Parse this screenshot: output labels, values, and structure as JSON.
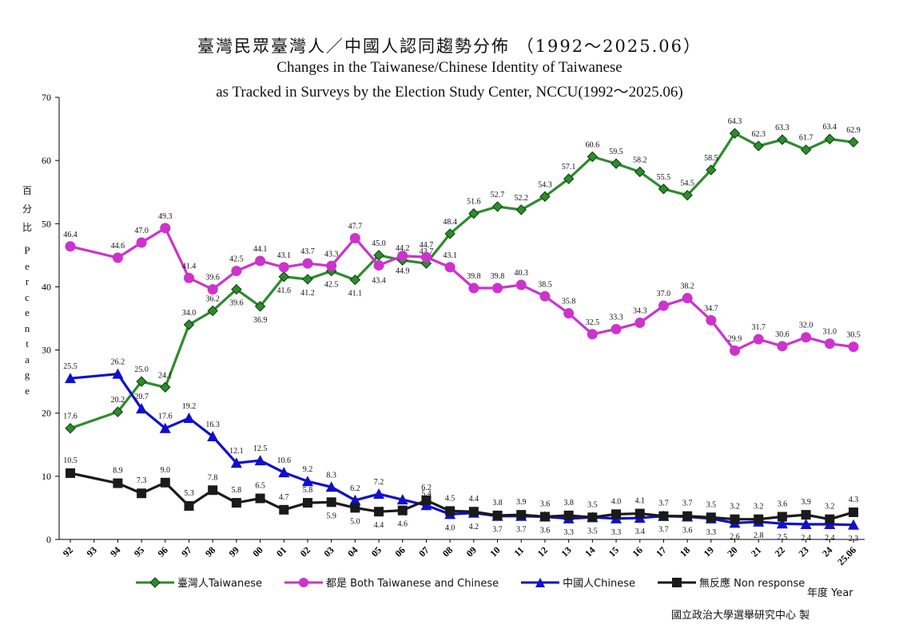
{
  "title_zh": "臺灣民眾臺灣人／中國人認同趨勢分佈 （1992～2025.06）",
  "title_en_line1": "Changes in the Taiwanese/Chinese Identity of Taiwanese",
  "title_en_line2": "as Tracked in Surveys by the Election Study Center, NCCU(1992～2025.06)",
  "ylabel_zh": [
    "百",
    "分",
    "比"
  ],
  "ylabel_en": [
    "P",
    "e",
    "r",
    "c",
    "e",
    "n",
    "t",
    "a",
    "g",
    "e"
  ],
  "xaxis_title": "年度 Year",
  "source": "國立政治大學選舉研究中心 製",
  "colors": {
    "taiwanese": "#2E8B2E",
    "both": "#CC33CC",
    "chinese": "#1010CC",
    "nonresponse": "#1A1A1A"
  },
  "chart_data": {
    "type": "line",
    "x": [
      "92",
      "93",
      "94",
      "95",
      "96",
      "97",
      "98",
      "99",
      "00",
      "01",
      "02",
      "03",
      "04",
      "05",
      "06",
      "07",
      "08",
      "09",
      "10",
      "11",
      "12",
      "13",
      "14",
      "15",
      "16",
      "17",
      "18",
      "19",
      "20",
      "21",
      "22",
      "23",
      "24",
      "25.06"
    ],
    "ylim": [
      0,
      70
    ],
    "yticks": [
      0,
      10,
      20,
      30,
      40,
      50,
      60,
      70
    ],
    "legend_position": "bottom",
    "series": [
      {
        "name": "臺灣人Taiwanese",
        "key": "taiwanese",
        "marker": "diamond",
        "values": [
          17.6,
          null,
          20.2,
          25.0,
          24.1,
          34.0,
          36.2,
          39.6,
          36.9,
          41.6,
          41.2,
          42.5,
          41.1,
          45.0,
          44.2,
          43.7,
          48.4,
          51.6,
          52.7,
          52.2,
          54.3,
          57.1,
          60.6,
          59.5,
          58.2,
          55.5,
          54.5,
          58.5,
          64.3,
          62.3,
          63.3,
          61.7,
          63.4,
          62.9
        ]
      },
      {
        "name": "都是 Both Taiwanese and Chinese",
        "key": "both",
        "marker": "circle",
        "values": [
          46.4,
          null,
          44.6,
          47.0,
          49.3,
          41.4,
          39.6,
          42.5,
          44.1,
          43.1,
          43.7,
          43.3,
          47.7,
          43.4,
          44.9,
          44.7,
          43.1,
          39.8,
          39.8,
          40.3,
          38.5,
          35.8,
          32.5,
          33.3,
          34.3,
          37.0,
          38.2,
          34.7,
          29.9,
          31.7,
          30.6,
          32.0,
          31.0,
          30.5
        ]
      },
      {
        "name": "中國人Chinese",
        "key": "chinese",
        "marker": "triangle",
        "values": [
          25.5,
          null,
          26.2,
          20.7,
          17.6,
          19.2,
          16.3,
          12.1,
          12.5,
          10.6,
          9.2,
          8.3,
          6.2,
          7.2,
          6.3,
          5.4,
          4.0,
          4.2,
          3.7,
          3.7,
          3.6,
          3.3,
          3.5,
          3.3,
          3.4,
          3.7,
          3.6,
          3.3,
          2.6,
          2.8,
          2.5,
          2.4,
          2.4,
          2.3
        ]
      },
      {
        "name": "無反應 Non response",
        "key": "nonresponse",
        "marker": "square",
        "values": [
          10.5,
          null,
          8.9,
          7.3,
          9.0,
          5.3,
          7.8,
          5.8,
          6.5,
          4.7,
          5.8,
          5.9,
          5.0,
          4.4,
          4.6,
          6.2,
          4.5,
          4.4,
          3.8,
          3.9,
          3.6,
          3.8,
          3.5,
          4.0,
          4.1,
          3.7,
          3.7,
          3.5,
          3.2,
          3.2,
          3.6,
          3.9,
          3.2,
          4.3
        ]
      }
    ]
  }
}
